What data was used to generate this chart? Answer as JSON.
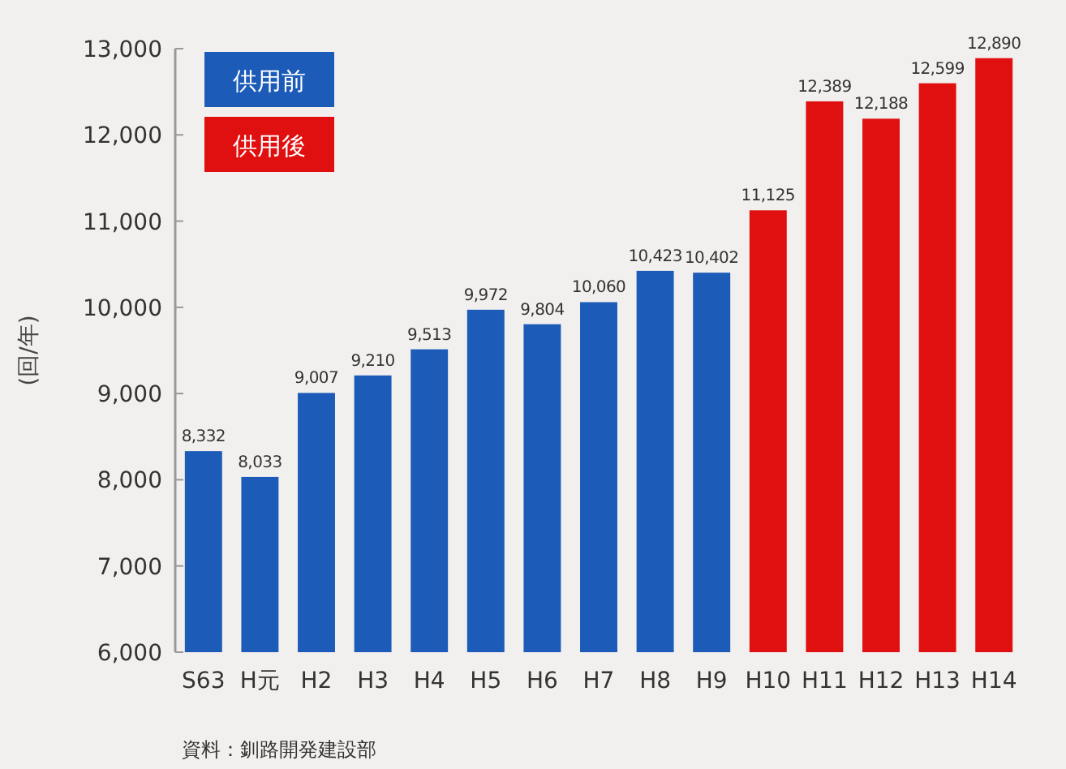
{
  "chart_data": {
    "type": "bar",
    "ylabel": "(回/年)",
    "categories": [
      "S63",
      "H元",
      "H2",
      "H3",
      "H4",
      "H5",
      "H6",
      "H7",
      "H8",
      "H9",
      "H10",
      "H11",
      "H12",
      "H13",
      "H14"
    ],
    "series": [
      {
        "name": "供用前",
        "color": "#1c5bb8",
        "values": [
          8332,
          8033,
          9007,
          9210,
          9513,
          9972,
          9804,
          10060,
          10423,
          10402,
          null,
          null,
          null,
          null,
          null
        ],
        "value_labels": [
          "8,332",
          "8,033",
          "9,007",
          "9,210",
          "9,513",
          "9,972",
          "9,804",
          "10,060",
          "10,423",
          "10,402",
          null,
          null,
          null,
          null,
          null
        ]
      },
      {
        "name": "供用後",
        "color": "#e01010",
        "values": [
          null,
          null,
          null,
          null,
          null,
          null,
          null,
          null,
          null,
          null,
          11125,
          12389,
          12188,
          12599,
          12890
        ],
        "value_labels": [
          null,
          null,
          null,
          null,
          null,
          null,
          null,
          null,
          null,
          null,
          "11,125",
          "12,389",
          "12,188",
          "12,599",
          "12,890"
        ]
      }
    ],
    "ylim": [
      6000,
      13000
    ],
    "yticks": [
      {
        "value": 6000,
        "label": "6,000"
      },
      {
        "value": 7000,
        "label": "7,000"
      },
      {
        "value": 8000,
        "label": "8,000"
      },
      {
        "value": 9000,
        "label": "9,000"
      },
      {
        "value": 10000,
        "label": "10,000"
      },
      {
        "value": 11000,
        "label": "11,000"
      },
      {
        "value": 12000,
        "label": "12,000"
      },
      {
        "value": 13000,
        "label": "13,000"
      }
    ],
    "legend": "top left",
    "grid": false,
    "annotations": [
      "資料：釧路開発建設部"
    ]
  }
}
